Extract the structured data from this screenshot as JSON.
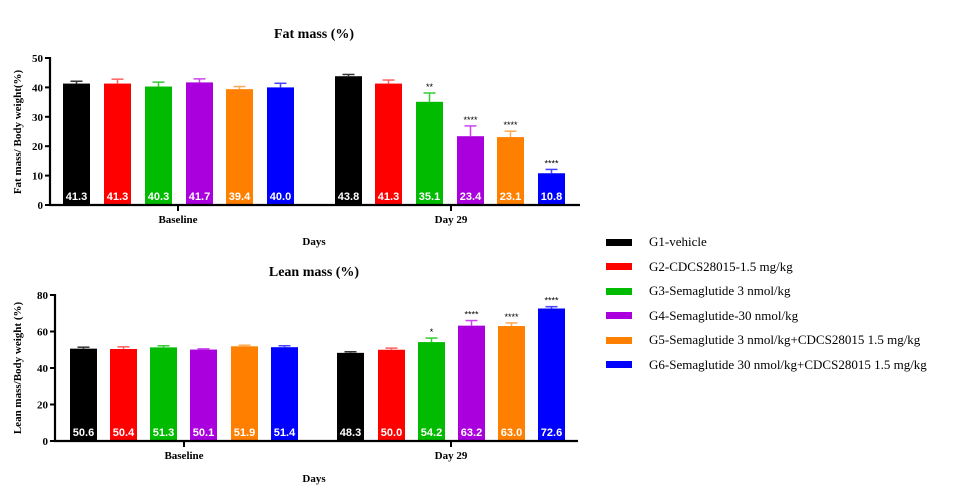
{
  "chart_data": [
    {
      "type": "bar",
      "title": "Fat mass (%)",
      "xlabel": "Days",
      "ylabel": "Fat mass/ Body weight(%)",
      "ylim": [
        0,
        50
      ],
      "yticks": [
        0,
        10,
        20,
        30,
        40,
        50
      ],
      "categories": [
        "Baseline",
        "Day 29"
      ],
      "series": [
        {
          "name": "G1-vehicle",
          "values": [
            41.3,
            43.8
          ],
          "labels": [
            "41.3",
            "43.8"
          ],
          "errors": [
            0.8,
            0.6
          ],
          "significance": [
            "",
            ""
          ]
        },
        {
          "name": "G2-CDCS28015-1.5 mg/kg",
          "values": [
            41.3,
            41.3
          ],
          "labels": [
            "41.3",
            "41.3"
          ],
          "errors": [
            1.5,
            1.2
          ],
          "significance": [
            "",
            ""
          ]
        },
        {
          "name": "G3-Semaglutide 3 nmol/kg",
          "values": [
            40.3,
            35.1
          ],
          "labels": [
            "40.3",
            "35.1"
          ],
          "errors": [
            1.5,
            3.0
          ],
          "significance": [
            "",
            "**"
          ]
        },
        {
          "name": "G4-Semaglutide-30 nmol/kg",
          "values": [
            41.7,
            23.4
          ],
          "labels": [
            "41.7",
            "23.4"
          ],
          "errors": [
            1.2,
            3.5
          ],
          "significance": [
            "",
            "****"
          ]
        },
        {
          "name": "G5-Semaglutide 3 nmol/kg+CDCS28015 1.5 mg/kg",
          "values": [
            39.4,
            23.1
          ],
          "labels": [
            "39.4",
            "23.1"
          ],
          "errors": [
            0.9,
            2.0
          ],
          "significance": [
            "",
            "****"
          ]
        },
        {
          "name": "G6-Semaglutide 30 nmol/kg+CDCS28015 1.5 mg/kg",
          "values": [
            40.0,
            10.8
          ],
          "labels": [
            "40.0",
            "10.8"
          ],
          "errors": [
            1.4,
            1.3
          ],
          "significance": [
            "",
            "****"
          ]
        }
      ]
    },
    {
      "type": "bar",
      "title": "Lean mass (%)",
      "xlabel": "Days",
      "ylabel": "Lean mass/Body weight (%)",
      "ylim": [
        0,
        80
      ],
      "yticks": [
        0,
        20,
        40,
        60,
        80
      ],
      "categories": [
        "Baseline",
        "Day 29"
      ],
      "series": [
        {
          "name": "G1-vehicle",
          "values": [
            50.6,
            48.3
          ],
          "labels": [
            "50.6",
            "48.3"
          ],
          "errors": [
            0.8,
            0.6
          ],
          "significance": [
            "",
            ""
          ]
        },
        {
          "name": "G2-CDCS28015-1.5 mg/kg",
          "values": [
            50.4,
            50.0
          ],
          "labels": [
            "50.4",
            "50.0"
          ],
          "errors": [
            1.2,
            0.9
          ],
          "significance": [
            "",
            ""
          ]
        },
        {
          "name": "G3-Semaglutide 3 nmol/kg",
          "values": [
            51.3,
            54.2
          ],
          "labels": [
            "51.3",
            "54.2"
          ],
          "errors": [
            0.9,
            2.2
          ],
          "significance": [
            "",
            "*"
          ]
        },
        {
          "name": "G4-Semaglutide-30 nmol/kg",
          "values": [
            50.1,
            63.2
          ],
          "labels": [
            "50.1",
            "63.2"
          ],
          "errors": [
            0.4,
            2.8
          ],
          "significance": [
            "",
            "****"
          ]
        },
        {
          "name": "G5-Semaglutide 3 nmol/kg+CDCS28015 1.5 mg/kg",
          "values": [
            51.9,
            63.0
          ],
          "labels": [
            "51.9",
            "63.0"
          ],
          "errors": [
            0.6,
            1.7
          ],
          "significance": [
            "",
            "****"
          ]
        },
        {
          "name": "G6-Semaglutide 30 nmol/kg+CDCS28015 1.5 mg/kg",
          "values": [
            51.4,
            72.6
          ],
          "labels": [
            "51.4",
            "72.6"
          ],
          "errors": [
            0.8,
            1.0
          ],
          "significance": [
            "",
            "****"
          ]
        }
      ]
    }
  ],
  "legend": {
    "position": "right",
    "items": [
      {
        "label": "G1-vehicle",
        "color": "#000000"
      },
      {
        "label": "G2-CDCS28015-1.5 mg/kg",
        "color": "#ff0000"
      },
      {
        "label": "G3-Semaglutide 3 nmol/kg",
        "color": "#00bb00"
      },
      {
        "label": "G4-Semaglutide-30 nmol/kg",
        "color": "#aa00dd"
      },
      {
        "label": "G5-Semaglutide 3 nmol/kg+CDCS28015 1.5 mg/kg",
        "color": "#ff8000"
      },
      {
        "label": "G6-Semaglutide 30 nmol/kg+CDCS28015 1.5 mg/kg",
        "color": "#0000ff"
      }
    ]
  },
  "error_colors": [
    "#333333",
    "#ff6060",
    "#33cc33",
    "#cc44ee",
    "#ffaa55",
    "#4444ff"
  ]
}
